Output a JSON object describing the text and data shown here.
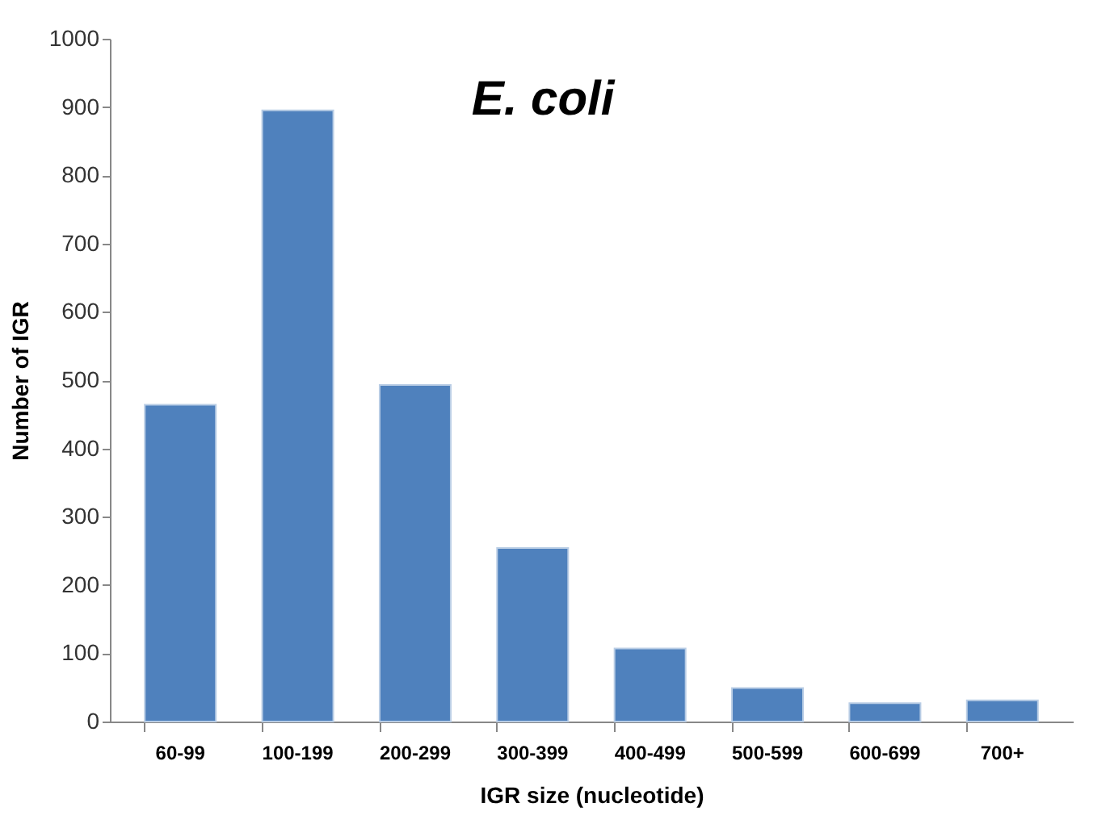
{
  "chart_data": {
    "type": "bar",
    "title": "E. coli",
    "xlabel": "IGR size (nucleotide)",
    "ylabel": "Number of IGR",
    "categories": [
      "60-99",
      "100-199",
      "200-299",
      "300-399",
      "400-499",
      "500-599",
      "600-699",
      "700+"
    ],
    "values": [
      464,
      895,
      493,
      254,
      107,
      49,
      27,
      31
    ],
    "color": "#4f81bd",
    "ylim": [
      0,
      1000
    ],
    "yticks": [
      0,
      100,
      200,
      300,
      400,
      500,
      600,
      700,
      800,
      900,
      1000
    ],
    "grid": false
  }
}
